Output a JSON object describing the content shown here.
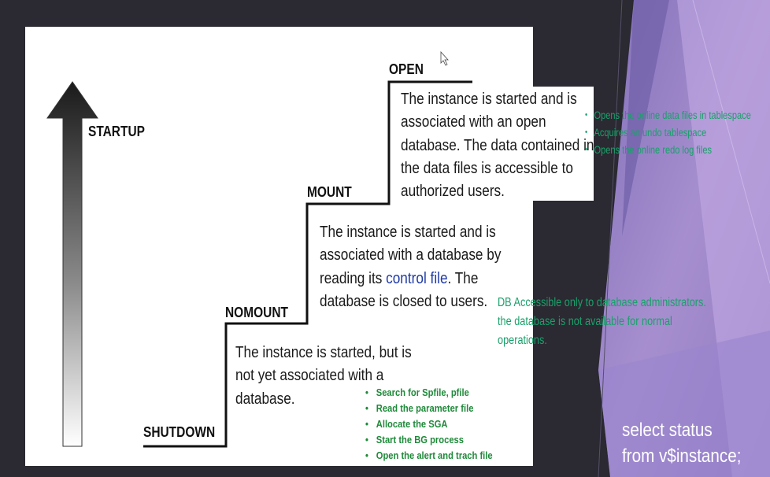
{
  "stages": {
    "shutdown": "SHUTDOWN",
    "nomount": "NOMOUNT",
    "mount": "MOUNT",
    "open": "OPEN",
    "startup": "STARTUP"
  },
  "descriptions": {
    "nomount": "The instance is started, but is not yet associated with a database.",
    "mount_before": "The instance is started and is associated with a database by reading its ",
    "mount_link": "control file",
    "mount_after": ". The database is closed to users.",
    "open": "The instance is started and is associated with an open database. The data contained in the data files is accessible to authorized users."
  },
  "nomount_steps": [
    "Search for Spfile, pfile",
    "Read the parameter file",
    "Allocate the SGA",
    "Start the BG process",
    "Open the alert and trach file"
  ],
  "mount_note": "DB Accessible only to database administrators. the database is not available for normal operations.",
  "open_steps": [
    "Opens the online data files in tablespace",
    "Acquires an undo tablespace",
    "Opens the online redo log files"
  ],
  "query": "select status from v$instance;",
  "colors": {
    "background": "#2b2931",
    "slide": "#ffffff",
    "accent_purple": "#a58bd6",
    "step_green": "#1f8a3a",
    "note_teal": "#1aa06b",
    "link_blue": "#1f3aa6"
  }
}
